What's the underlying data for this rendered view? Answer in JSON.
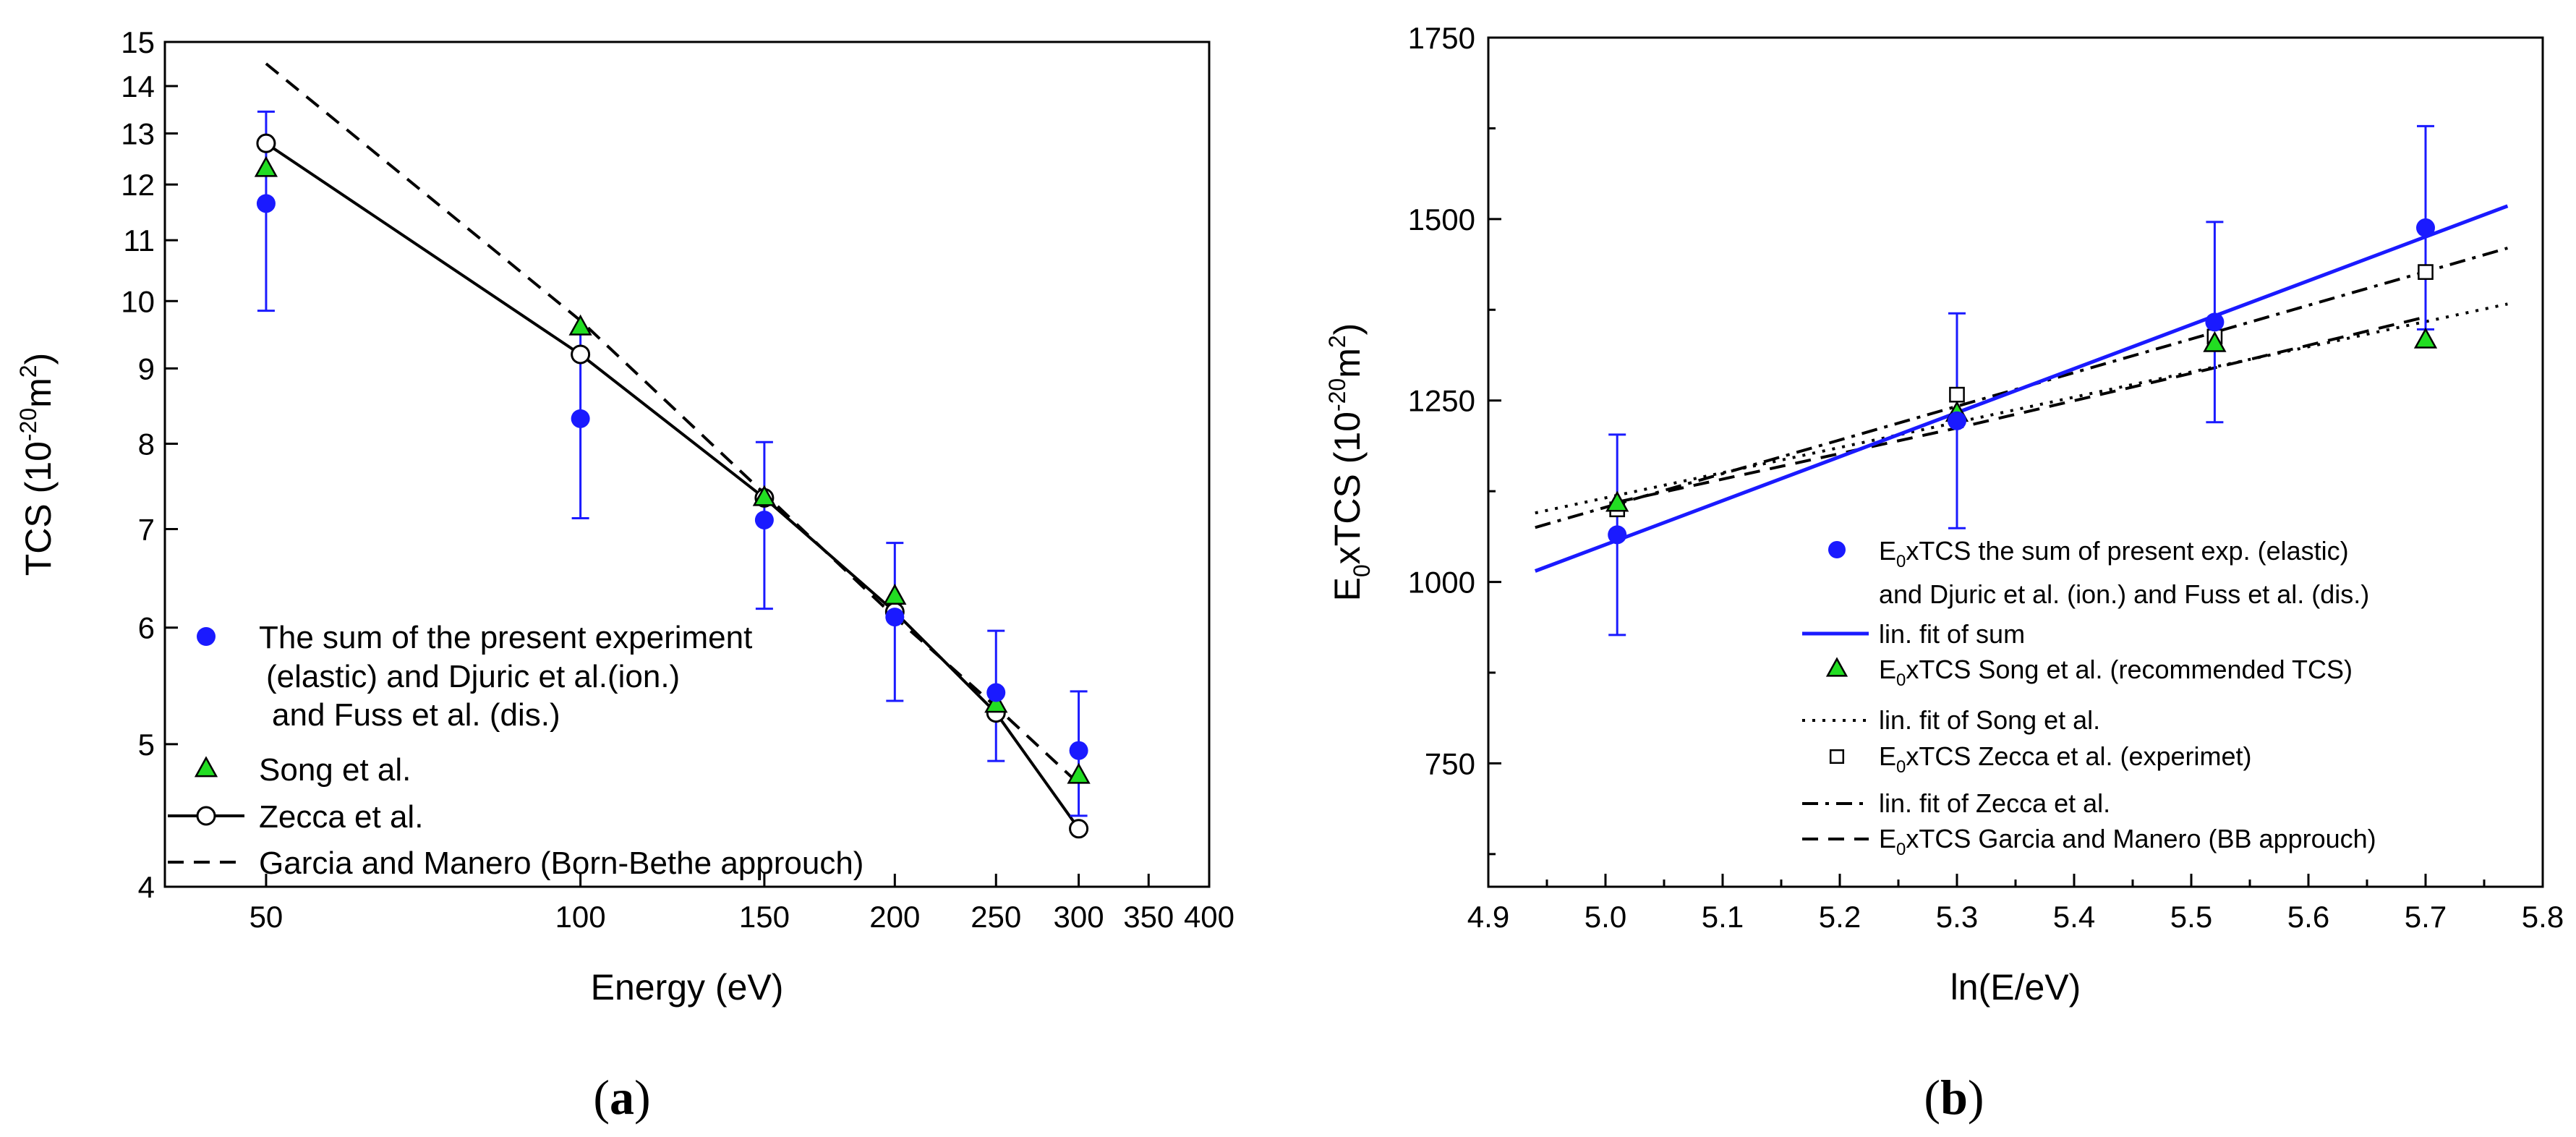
{
  "chart_data": [
    {
      "type": "scatter",
      "panel_label": "a",
      "xscale": "log",
      "yscale": "log",
      "xlabel": "Energy (eV)",
      "ylabel": "TCS (10",
      "ylabel_sup": "-20",
      "ylabel_unit": "m",
      "ylabel_unit_sup": "2",
      "ylabel_close": ")",
      "xlim": [
        40,
        400
      ],
      "ylim": [
        4,
        15
      ],
      "xticks": [
        50,
        100,
        150,
        200,
        250,
        300,
        350,
        400
      ],
      "yticks": [
        4,
        5,
        6,
        7,
        8,
        9,
        10,
        11,
        12,
        13,
        14,
        15
      ],
      "legend_position": "bottom-left",
      "series": [
        {
          "name": "sum",
          "legend": [
            "The sum of the present experiment",
            "(elastic) and Djuric et al.(ion.)",
            "and Fuss et al. (dis.)"
          ],
          "marker": "filled-circle",
          "color": "#1a1aff",
          "x": [
            50,
            100,
            150,
            200,
            250,
            300
          ],
          "y": [
            11.65,
            8.32,
            7.1,
            6.1,
            5.42,
            4.95
          ],
          "yerr": [
            1.8,
            1.2,
            0.92,
            0.75,
            0.55,
            0.48
          ]
        },
        {
          "name": "song",
          "legend": [
            "Song et al."
          ],
          "marker": "triangle",
          "color": "#22dd22",
          "x": [
            50,
            100,
            150,
            200,
            250,
            300
          ],
          "y": [
            12.3,
            9.6,
            7.35,
            6.3,
            5.32,
            4.76
          ]
        },
        {
          "name": "zecca",
          "legend": [
            "Zecca et al."
          ],
          "marker": "open-circle-line",
          "color": "#000000",
          "x": [
            50,
            100,
            150,
            200,
            250,
            300
          ],
          "y": [
            12.8,
            9.2,
            7.35,
            6.15,
            5.25,
            4.38
          ]
        },
        {
          "name": "garcia",
          "legend": [
            "Garcia and Manero (Born-Bethe approuch)"
          ],
          "marker": "dashed-line",
          "color": "#000000",
          "x": [
            50,
            100,
            150,
            200,
            250,
            300
          ],
          "y": [
            14.5,
            9.7,
            7.4,
            6.1,
            5.3,
            4.7
          ]
        }
      ]
    },
    {
      "type": "scatter",
      "panel_label": "b",
      "xlabel": "ln(E/eV)",
      "ylabel_pre": "E",
      "ylabel_sub": "0",
      "ylabel_mid": "xTCS (10",
      "ylabel_sup": "-20",
      "ylabel_unit": "m",
      "ylabel_unit_sup": "2",
      "ylabel_close": ")",
      "xlim": [
        4.9,
        5.8
      ],
      "ylim": [
        580,
        1750
      ],
      "xticks": [
        "4.9",
        "5.0",
        "5.1",
        "5.2",
        "5.3",
        "5.4",
        "5.5",
        "5.6",
        "5.7",
        "5.8"
      ],
      "yticks": [
        750,
        1000,
        1250,
        1500,
        1750
      ],
      "legend_position": "bottom-right",
      "series": [
        {
          "name": "sum",
          "legend": [
            {
              "pre": "E",
              "sub": "0",
              "text": "xTCS the sum of present exp. (elastic)"
            },
            {
              "pre": "",
              "sub": "",
              "text": "and Djuric et al. (ion.) and Fuss et al. (dis.)"
            }
          ],
          "marker": "filled-circle",
          "color": "#1a1aff",
          "x": [
            5.01,
            5.3,
            5.52,
            5.7
          ],
          "y": [
            1065,
            1222,
            1358,
            1488
          ],
          "yerr": [
            138,
            148,
            138,
            140
          ]
        },
        {
          "name": "fit_sum",
          "legend": [
            {
              "pre": "",
              "sub": "",
              "text": "lin. fit of sum"
            }
          ],
          "marker": "solid-line",
          "color": "#1a1aff",
          "x": [
            4.94,
            5.77
          ],
          "y": [
            1015,
            1518
          ]
        },
        {
          "name": "song",
          "legend": [
            {
              "pre": "E",
              "sub": "0",
              "text": "xTCS Song et al. (recommended TCS)"
            }
          ],
          "marker": "triangle",
          "color": "#22dd22",
          "x": [
            5.01,
            5.3,
            5.52,
            5.7
          ],
          "y": [
            1108,
            1232,
            1328,
            1333
          ]
        },
        {
          "name": "fit_song",
          "legend": [
            {
              "pre": "",
              "sub": "",
              "text": "lin. fit of Song et al."
            }
          ],
          "marker": "dotted-line",
          "color": "#000000",
          "x": [
            4.94,
            5.77
          ],
          "y": [
            1095,
            1383
          ]
        },
        {
          "name": "zecca",
          "legend": [
            {
              "pre": "E",
              "sub": "0",
              "text": "xTCS Zecca et al. (experimet)"
            }
          ],
          "marker": "open-square",
          "color": "#000000",
          "x": [
            5.01,
            5.3,
            5.52,
            5.7
          ],
          "y": [
            1100,
            1258,
            1338,
            1427
          ]
        },
        {
          "name": "fit_zecca",
          "legend": [
            {
              "pre": "",
              "sub": "",
              "text": "lin. fit of Zecca et al."
            }
          ],
          "marker": "dashdot-line",
          "color": "#000000",
          "x": [
            4.94,
            5.77
          ],
          "y": [
            1075,
            1460
          ]
        },
        {
          "name": "garcia",
          "legend": [
            {
              "pre": "E",
              "sub": "0",
              "text": "xTCS Garcia and Manero (BB approuch)"
            }
          ],
          "marker": "dashed-line",
          "color": "#000000",
          "x": [
            5.01,
            5.3,
            5.52,
            5.7
          ],
          "y": [
            1110,
            1212,
            1295,
            1365
          ]
        }
      ]
    }
  ]
}
